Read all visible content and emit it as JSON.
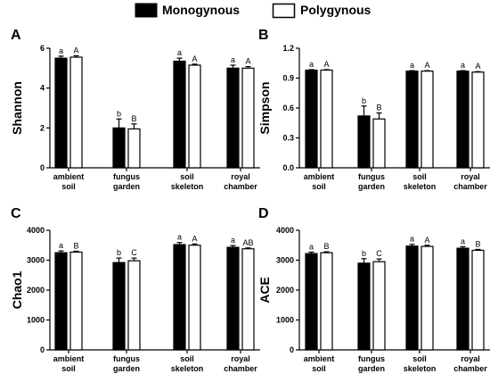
{
  "legend": {
    "items": [
      {
        "name": "Monogynous",
        "color": "#000000",
        "fill": "#000000"
      },
      {
        "name": "Polygynous",
        "color": "#000000",
        "fill": "#ffffff"
      }
    ]
  },
  "chart_data": [
    {
      "panel": "A",
      "type": "bar",
      "ylabel": "Shannon",
      "categories": [
        [
          "ambient",
          "soil"
        ],
        [
          "fungus",
          "garden"
        ],
        [
          "soil",
          "skeleton"
        ],
        [
          "royal",
          "chamber"
        ]
      ],
      "ylim": [
        0,
        6
      ],
      "yticks": [
        0,
        2,
        4,
        6
      ],
      "series": [
        {
          "name": "Monogynous",
          "values": [
            5.5,
            2.0,
            5.35,
            5.0
          ],
          "errors": [
            0.1,
            0.45,
            0.15,
            0.15
          ],
          "sig": [
            "a",
            "b",
            "a",
            "a"
          ]
        },
        {
          "name": "Polygynous",
          "values": [
            5.55,
            1.95,
            5.15,
            5.0
          ],
          "errors": [
            0.07,
            0.25,
            0.05,
            0.08
          ],
          "sig": [
            "A",
            "B",
            "A",
            "A"
          ]
        }
      ]
    },
    {
      "panel": "B",
      "type": "bar",
      "ylabel": "Simpson",
      "categories": [
        [
          "ambient",
          "soil"
        ],
        [
          "fungus",
          "garden"
        ],
        [
          "soil",
          "skeleton"
        ],
        [
          "royal",
          "chamber"
        ]
      ],
      "ylim": [
        0,
        1.2
      ],
      "yticks": [
        0.0,
        0.3,
        0.6,
        0.9,
        1.2
      ],
      "ytick_labels": [
        "0.0",
        "0.3",
        "0.6",
        "0.9",
        "1.2"
      ],
      "series": [
        {
          "name": "Monogynous",
          "values": [
            0.98,
            0.52,
            0.97,
            0.97
          ],
          "errors": [
            0.005,
            0.1,
            0.005,
            0.005
          ],
          "sig": [
            "a",
            "b",
            "a",
            "a"
          ]
        },
        {
          "name": "Polygynous",
          "values": [
            0.98,
            0.49,
            0.97,
            0.96
          ],
          "errors": [
            0.005,
            0.06,
            0.005,
            0.005
          ],
          "sig": [
            "A",
            "B",
            "A",
            "A"
          ]
        }
      ]
    },
    {
      "panel": "C",
      "type": "bar",
      "ylabel": "Chao1",
      "categories": [
        [
          "ambient",
          "soil"
        ],
        [
          "fungus",
          "garden"
        ],
        [
          "soil",
          "skeleton"
        ],
        [
          "royal",
          "chamber"
        ]
      ],
      "ylim": [
        0,
        4000
      ],
      "yticks": [
        0,
        1000,
        2000,
        3000,
        4000
      ],
      "series": [
        {
          "name": "Monogynous",
          "values": [
            3250,
            2920,
            3520,
            3430
          ],
          "errors": [
            60,
            150,
            70,
            60
          ],
          "sig": [
            "a",
            "b",
            "a",
            "a"
          ]
        },
        {
          "name": "Polygynous",
          "values": [
            3270,
            2980,
            3500,
            3380
          ],
          "errors": [
            30,
            90,
            40,
            30
          ],
          "sig": [
            "B",
            "C",
            "A",
            "AB"
          ]
        }
      ]
    },
    {
      "panel": "D",
      "type": "bar",
      "ylabel": "ACE",
      "categories": [
        [
          "ambient",
          "soil"
        ],
        [
          "fungus",
          "garden"
        ],
        [
          "soil",
          "skeleton"
        ],
        [
          "royal",
          "chamber"
        ]
      ],
      "ylim": [
        0,
        4000
      ],
      "yticks": [
        0,
        1000,
        2000,
        3000,
        4000
      ],
      "series": [
        {
          "name": "Monogynous",
          "values": [
            3220,
            2900,
            3470,
            3400
          ],
          "errors": [
            50,
            150,
            60,
            50
          ],
          "sig": [
            "a",
            "b",
            "a",
            "a"
          ]
        },
        {
          "name": "Polygynous",
          "values": [
            3250,
            2950,
            3460,
            3330
          ],
          "errors": [
            30,
            90,
            40,
            30
          ],
          "sig": [
            "B",
            "C",
            "A",
            "B"
          ]
        }
      ]
    }
  ]
}
